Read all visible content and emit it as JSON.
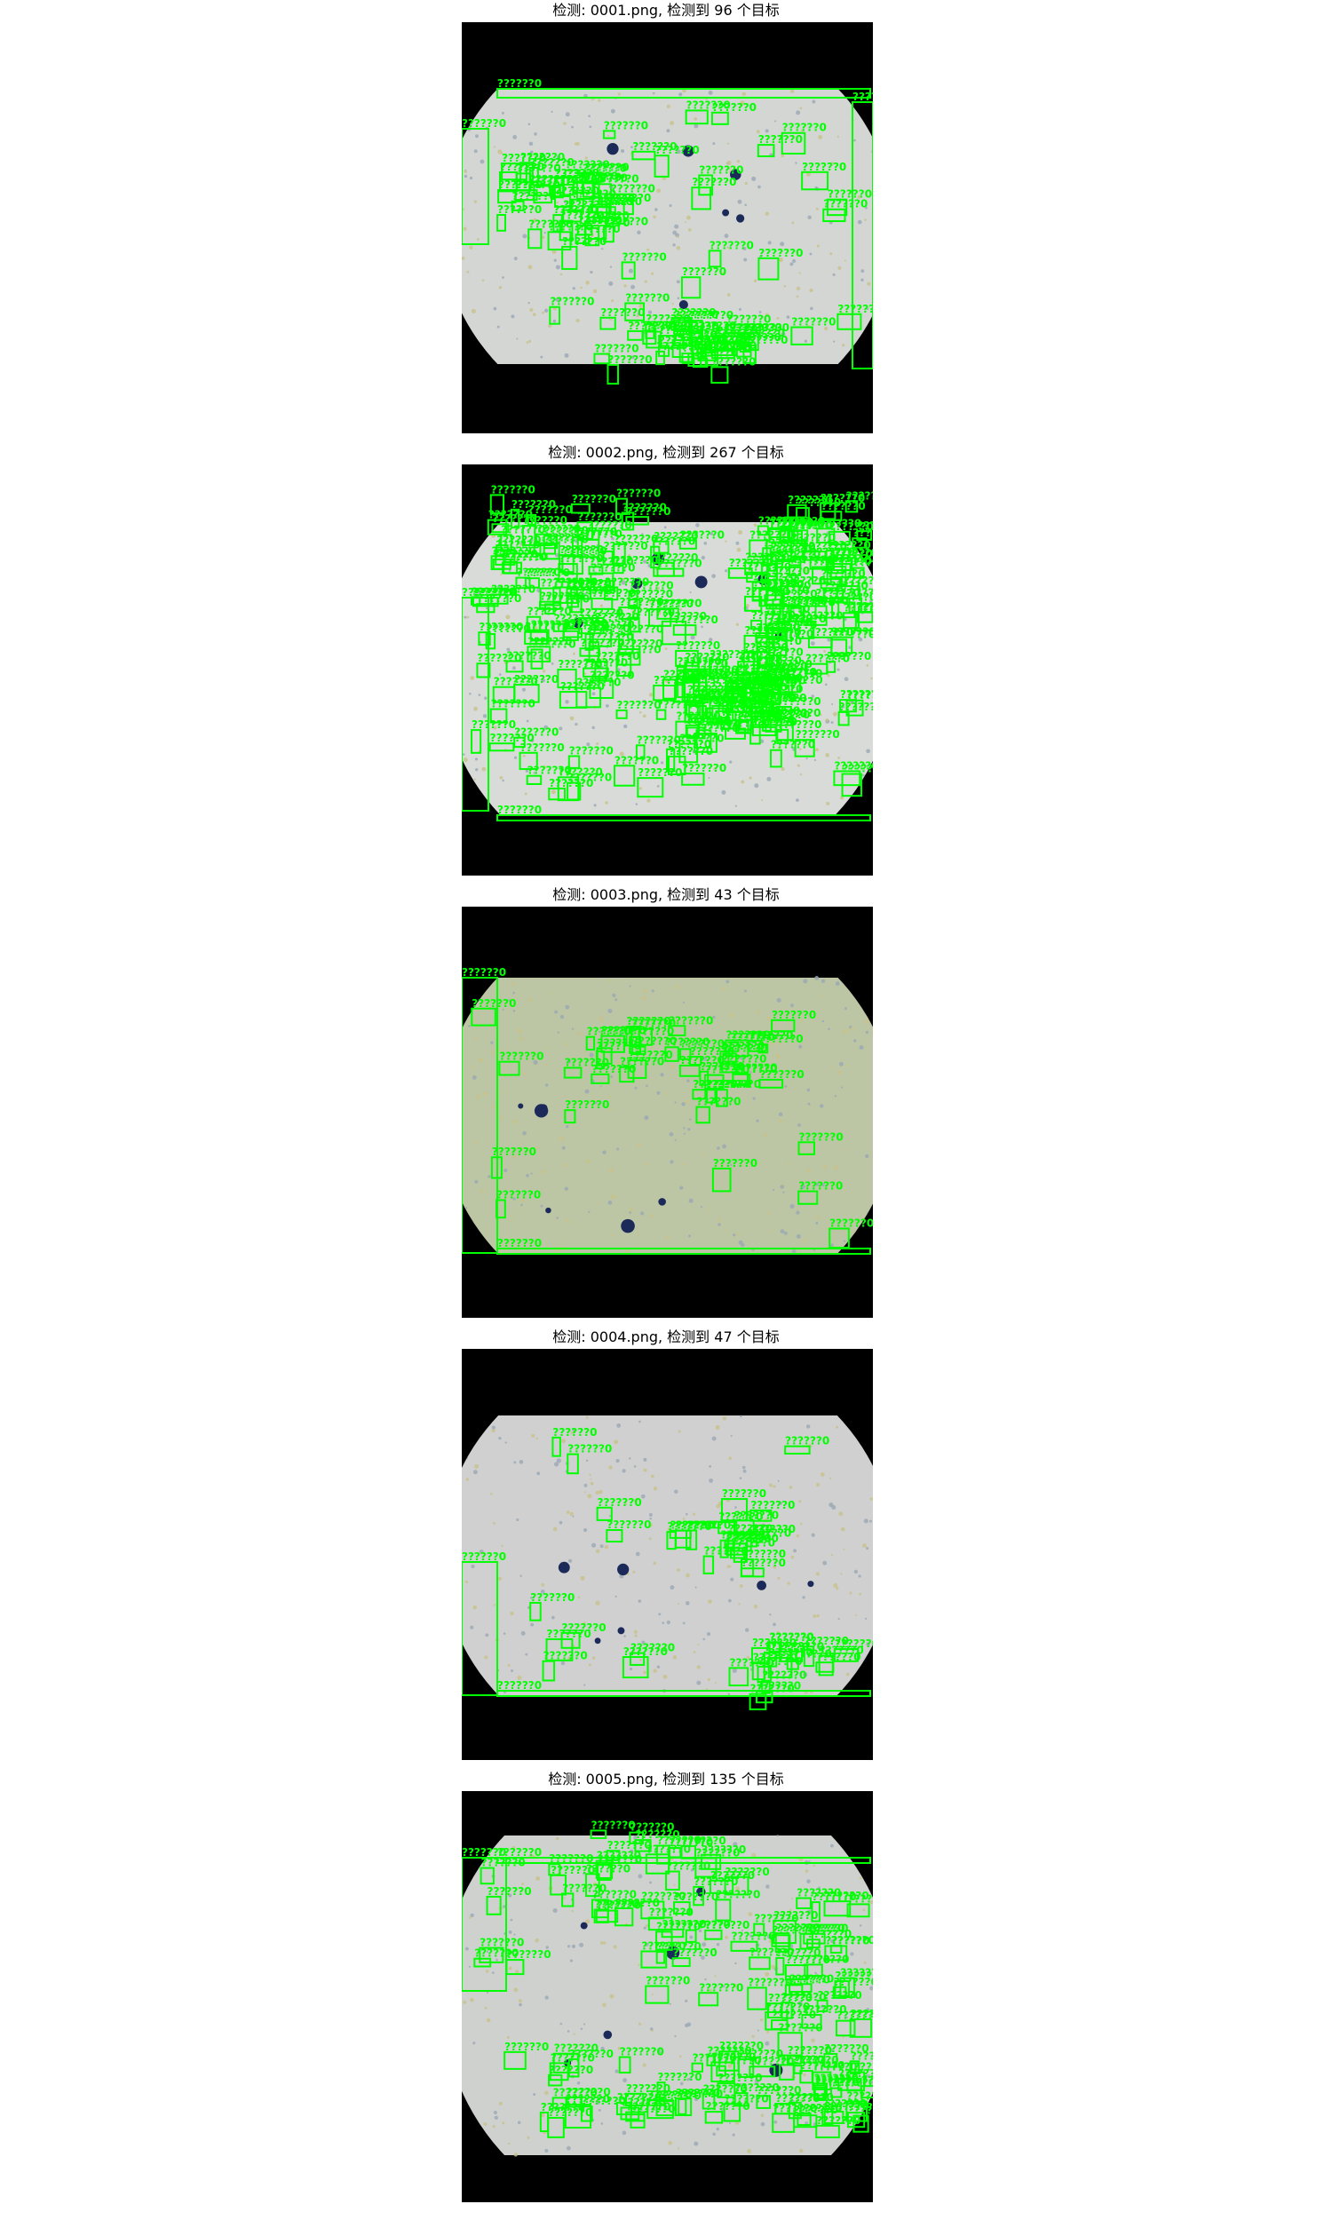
{
  "panels": [
    {
      "title": "检测: 0001.png, 检测到 96 个目标",
      "field_color": "#d4d6d4",
      "count": 96
    },
    {
      "title": "检测: 0002.png, 检测到 267 个目标",
      "field_color": "#d9dbd9",
      "count": 267
    },
    {
      "title": "检测: 0003.png, 检测到 43 个目标",
      "field_color": "#bcc5a4",
      "count": 43
    },
    {
      "title": "检测: 0004.png, 检测到 47 个目标",
      "field_color": "#cfd0cf",
      "count": 47
    },
    {
      "title": "检测: 0005.png, 检测到 135 个目标",
      "field_color": "#cfd1cf",
      "count": 135
    }
  ],
  "box_label": "??????0",
  "box_color": "#00ff00"
}
